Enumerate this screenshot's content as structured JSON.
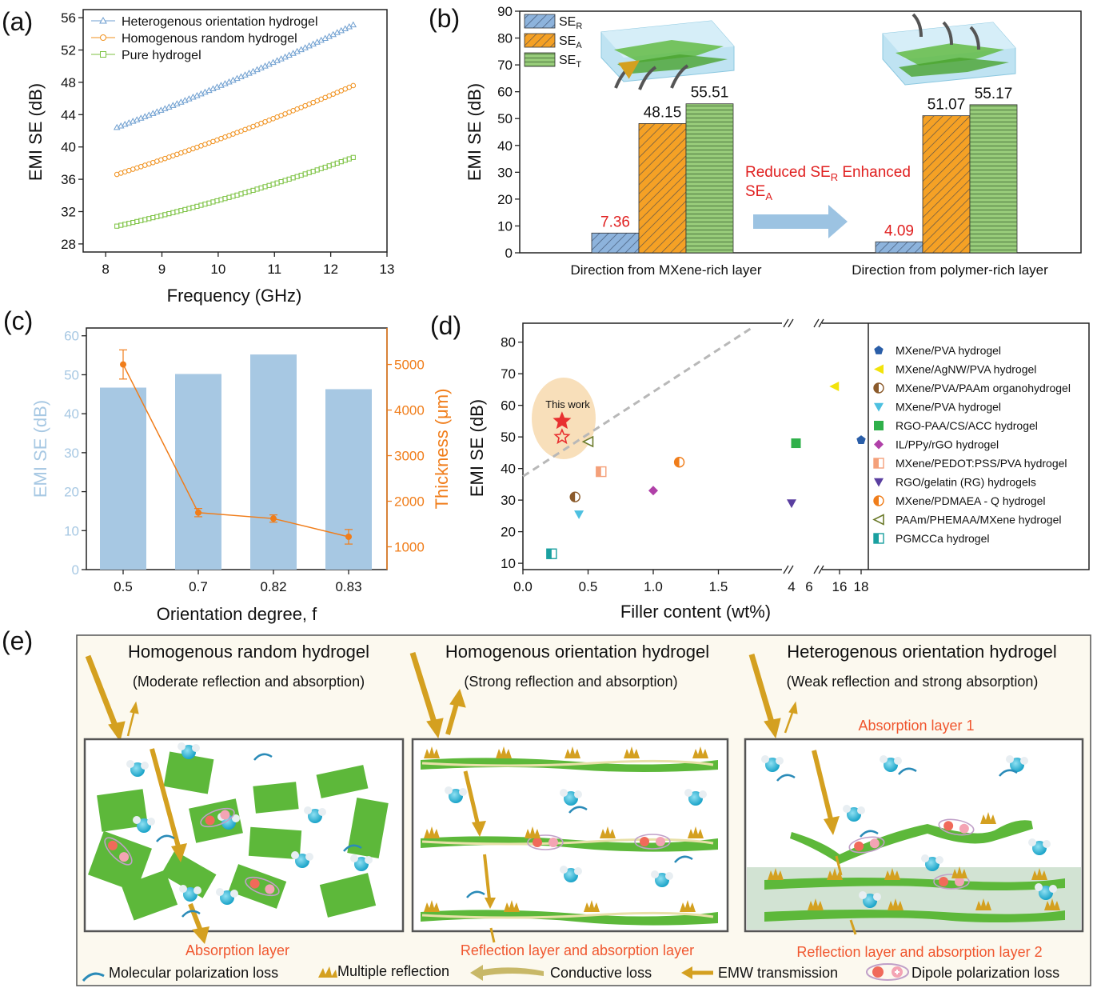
{
  "panel_labels": [
    "(a)",
    "(b)",
    "(c)",
    "(d)",
    "(e)"
  ],
  "colors": {
    "blue_series": "#6f9fd0",
    "orange_series": "#f0911e",
    "green_series": "#7cc242",
    "bar_blue": "#a7c8e3",
    "orange_line": "#f07d1a",
    "red_text": "#e02020",
    "panel_e_text": "#f0572f",
    "gold_arrow": "#d4a020",
    "mxene_green": "#5db83a",
    "water_blue": "#2bb3d6"
  },
  "chart_data": [
    {
      "id": "a",
      "type": "line",
      "xlabel": "Frequency (GHz)",
      "ylabel": "EMI SE (dB)",
      "xlim": [
        7.6,
        13
      ],
      "ylim": [
        27,
        57
      ],
      "xticks": [
        8,
        9,
        10,
        11,
        12,
        13
      ],
      "yticks": [
        28,
        32,
        36,
        40,
        44,
        48,
        52,
        56
      ],
      "legend_position": "top-left",
      "grid": false,
      "x": [
        8.2,
        12.4
      ],
      "points_per_series": 60,
      "series": [
        {
          "name": "Heterogenous orientation hydrogel",
          "marker": "triangle",
          "color": "#6f9fd0",
          "start": 42.4,
          "end": 55.1,
          "curvature": 0.5
        },
        {
          "name": "Homogenous random hydrogel",
          "marker": "circle",
          "color": "#f0911e",
          "start": 36.6,
          "end": 47.6,
          "curvature": 0.6
        },
        {
          "name": "Pure hydrogel",
          "marker": "square",
          "color": "#7cc242",
          "start": 30.2,
          "end": 38.7,
          "curvature": 0.9
        }
      ]
    },
    {
      "id": "b",
      "type": "bar",
      "ylabel": "EMI SE (dB)",
      "ylim": [
        0,
        90
      ],
      "yticks": [
        0,
        10,
        20,
        30,
        40,
        50,
        60,
        70,
        80,
        90
      ],
      "categories": [
        "Direction from MXene-rich layer",
        "Direction from polymer-rich layer"
      ],
      "series": [
        {
          "name": "SE",
          "sub": "R",
          "values": [
            7.36,
            4.09
          ],
          "labels": [
            "7.36",
            "4.09"
          ],
          "label_color": "#e02020",
          "color": "#8db3dc",
          "hatch": "diag"
        },
        {
          "name": "SE",
          "sub": "A",
          "values": [
            48.15,
            51.07
          ],
          "labels": [
            "48.15",
            "51.07"
          ],
          "label_color": "#111111",
          "color": "#f5a125",
          "hatch": "diag"
        },
        {
          "name": "SE",
          "sub": "T",
          "values": [
            55.51,
            55.17
          ],
          "labels": [
            "55.51",
            "55.17"
          ],
          "label_color": "#111111",
          "color": "#98cc7a",
          "hatch": "horiz"
        }
      ],
      "annotation": {
        "line1_a": "Reduced SE",
        "line1_sub": "R",
        "line1_b": " Enhanced",
        "line2": "SE",
        "line2_sub": "A"
      }
    },
    {
      "id": "c",
      "type": "bar+line",
      "xlabel": "Orientation degree, f",
      "ylabel_left": "EMI SE (dB)",
      "ylabel_right": "Thickness (μm)",
      "ylim_left": [
        0,
        62
      ],
      "yticks_left": [
        0,
        10,
        20,
        30,
        40,
        50,
        60
      ],
      "ylim_right": [
        500,
        5800
      ],
      "yticks_right": [
        1000,
        2000,
        3000,
        4000,
        5000
      ],
      "categories": [
        "0.5",
        "0.7",
        "0.82",
        "0.83"
      ],
      "bars": [
        46.7,
        50.2,
        55.2,
        46.3
      ],
      "thickness": [
        5000,
        1750,
        1620,
        1220
      ],
      "thickness_err": [
        320,
        90,
        80,
        160
      ]
    },
    {
      "id": "d",
      "type": "scatter",
      "xlabel": "Filler content (wt%)",
      "ylabel": "EMI SE (dB)",
      "ylim": [
        8,
        86
      ],
      "yticks": [
        10,
        20,
        30,
        40,
        50,
        60,
        70,
        80
      ],
      "xticks": [
        {
          "label": "0.0",
          "x": 0.0
        },
        {
          "label": "0.5",
          "x": 0.5
        },
        {
          "label": "1.0",
          "x": 1.0
        },
        {
          "label": "1.5",
          "x": 1.5
        },
        {
          "label": "4",
          "x": 4
        },
        {
          "label": "6",
          "x": 6
        },
        {
          "label": "16",
          "x": 16
        },
        {
          "label": "18",
          "x": 18
        }
      ],
      "highlight_label": "This work",
      "trend_line": {
        "from": [
          0.0,
          37.5
        ],
        "to": [
          2.0,
          86
        ]
      },
      "this_work": [
        {
          "x": 0.3,
          "y": 55,
          "style": "filled-star"
        },
        {
          "x": 0.3,
          "y": 50,
          "style": "hollow-star"
        }
      ],
      "points": [
        {
          "name": "MXene/PVA hydrogel",
          "marker": "pentagon",
          "color": "#2a5ea8",
          "x": 18,
          "y": 49
        },
        {
          "name": "MXene/AgNW/PVA hydrogel",
          "marker": "triangle-left",
          "color": "#f2e30b",
          "x": 15.5,
          "y": 66
        },
        {
          "name": "MXene/PVA/PAAm organohydrogel",
          "marker": "half-circle",
          "color": "#8b5a2b",
          "x": 0.4,
          "y": 31
        },
        {
          "name": "MXene/PVA hydrogel",
          "marker": "triangle-down",
          "color": "#4dc0e0",
          "x": 0.43,
          "y": 25.5
        },
        {
          "name": "RGO-PAA/CS/ACC hydrogel",
          "marker": "square",
          "color": "#2fb04a",
          "x": 4.5,
          "y": 48
        },
        {
          "name": "IL/PPy/rGO hydrogel",
          "marker": "diamond",
          "color": "#b040a8",
          "x": 1.0,
          "y": 33
        },
        {
          "name": "MXene/PEDOT:PSS/PVA hydrogel",
          "marker": "half-square",
          "color": "#f4a07a",
          "x": 0.6,
          "y": 39
        },
        {
          "name": "RGO/gelatin (RG) hydrogels",
          "marker": "triangle-down",
          "color": "#5a3fa0",
          "x": 4.0,
          "y": 29
        },
        {
          "name": "MXene/PDMAEA - Q hydrogel",
          "marker": "half-circle",
          "color": "#f07d1a",
          "x": 1.2,
          "y": 42
        },
        {
          "name": "PAAm/PHEMAA/MXene hydrogel",
          "marker": "triangle-left-hollow",
          "color": "#6b7a2a",
          "x": 0.5,
          "y": 48.5
        },
        {
          "name": "PGMCCa hydrogel",
          "marker": "half-square",
          "color": "#1aa0a0",
          "x": 0.22,
          "y": 13
        }
      ]
    }
  ],
  "schematic": {
    "panels": [
      {
        "title": "Homogenous random hydrogel",
        "subtitle": "(Moderate reflection and absorption)",
        "layer_label": "Absorption layer"
      },
      {
        "title": "Homogenous orientation hydrogel",
        "subtitle": "(Strong reflection and absorption)",
        "layer_label": "Reflection layer and absorption layer"
      },
      {
        "title": "Heterogenous orientation hydrogel",
        "subtitle": "(Weak reflection and strong absorption)",
        "top_label": "Absorption layer 1",
        "layer_label": "Reflection layer and absorption layer 2"
      }
    ],
    "legend": [
      "Molecular polarization loss",
      "Multiple reflection",
      "Conductive loss",
      "EMW transmission",
      "Dipole polarization loss"
    ]
  }
}
